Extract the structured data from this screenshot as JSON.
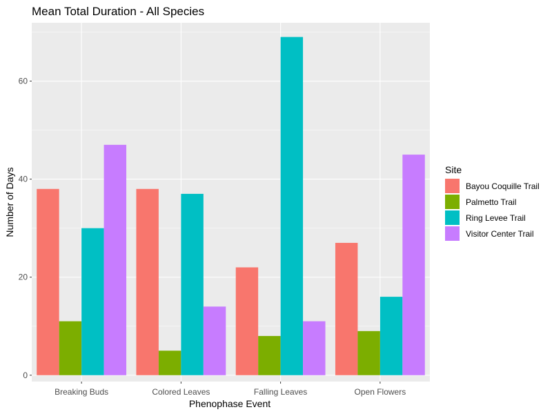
{
  "chart_data": {
    "type": "bar",
    "title": "Mean Total Duration - All Species",
    "xlabel": "Phenophase Event",
    "ylabel": "Number of Days",
    "categories": [
      "Breaking Buds",
      "Colored Leaves",
      "Falling Leaves",
      "Open Flowers"
    ],
    "series": [
      {
        "name": "Bayou Coquille Trail",
        "color": "#F8766D",
        "values": [
          38,
          38,
          22,
          27
        ]
      },
      {
        "name": "Palmetto Trail",
        "color": "#7CAE00",
        "values": [
          11,
          5,
          8,
          9
        ]
      },
      {
        "name": "Ring Levee Trail",
        "color": "#00BFC4",
        "values": [
          30,
          37,
          69,
          16
        ]
      },
      {
        "name": "Visitor Center Trail",
        "color": "#C77CFF",
        "values": [
          47,
          14,
          11,
          45
        ]
      }
    ],
    "ylim": [
      0,
      73
    ],
    "yticks": [
      0,
      20,
      40,
      60
    ],
    "grid": true,
    "legend": {
      "title": "Site",
      "position": "right"
    },
    "panel_background": "#EBEBEB",
    "grid_color": "#FFFFFF"
  }
}
